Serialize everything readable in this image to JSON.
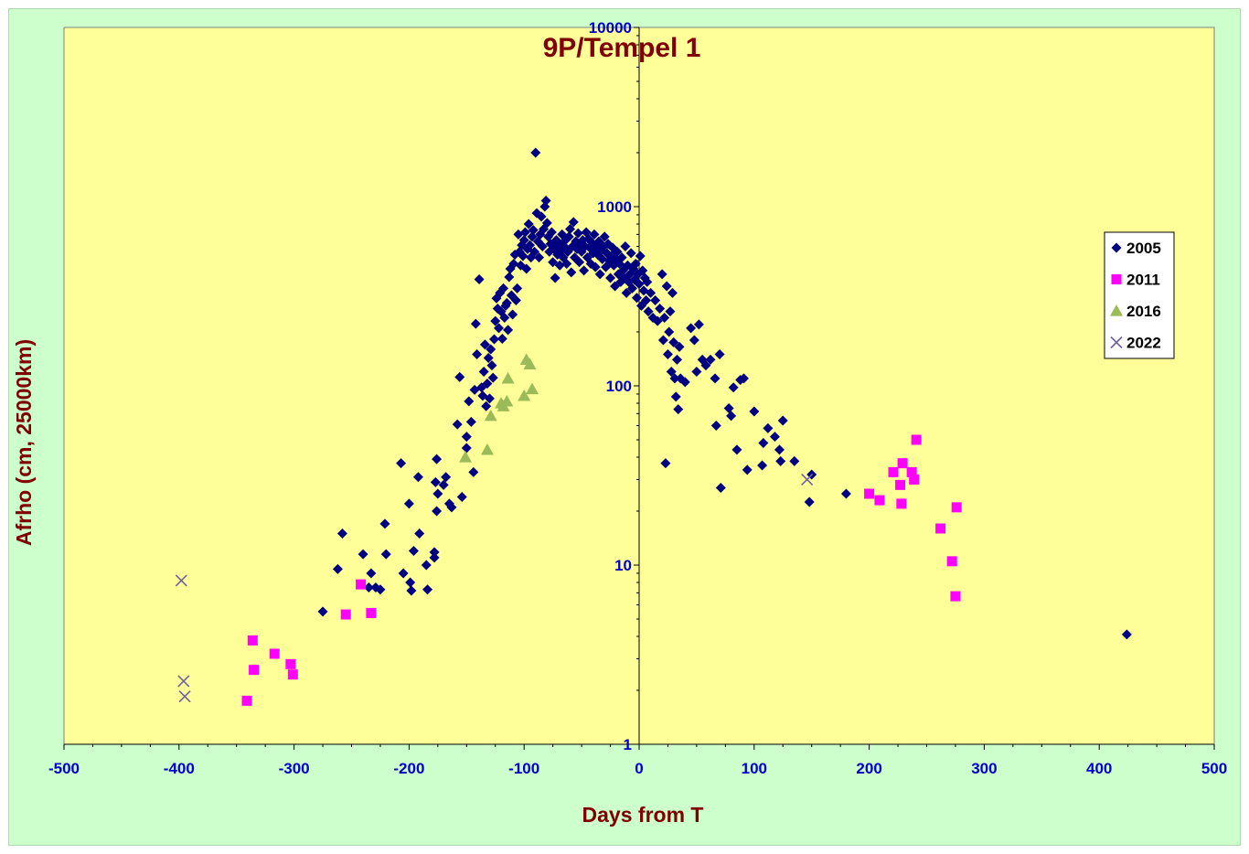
{
  "chart_data": {
    "type": "scatter",
    "title": "9P/Tempel 1",
    "xlabel": "Days from T",
    "ylabel": "Afrho (cm, 25000km)",
    "xlim": [
      -500,
      500
    ],
    "ylim": [
      1,
      10000
    ],
    "yscale": "log",
    "x_ticks": [
      "-500",
      "-400",
      "-300",
      "-200",
      "-100",
      "0",
      "100",
      "200",
      "300",
      "400",
      "500"
    ],
    "y_ticks": [
      "1",
      "10",
      "100",
      "1000",
      "10000"
    ],
    "legend_position": "right",
    "colors": {
      "plot_background": "#ffff99",
      "chart_background": "#ccffcc",
      "title": "#800000",
      "tick_labels": "#0000cc"
    },
    "series": [
      {
        "name": "2005",
        "marker": "diamond",
        "color": "#000080",
        "points": [
          [
            -275,
            5.5
          ],
          [
            -262,
            9.5
          ],
          [
            -258,
            15
          ],
          [
            -240,
            11.5
          ],
          [
            -235,
            7.5
          ],
          [
            -233,
            9
          ],
          [
            -229,
            7.5
          ],
          [
            -225,
            7.3
          ],
          [
            -221,
            17
          ],
          [
            -220,
            11.5
          ],
          [
            -207,
            37
          ],
          [
            -205,
            9
          ],
          [
            -200,
            22
          ],
          [
            -199,
            8
          ],
          [
            -198,
            7.2
          ],
          [
            -196,
            12
          ],
          [
            -192,
            31
          ],
          [
            -191,
            15
          ],
          [
            -185,
            10
          ],
          [
            -184,
            7.3
          ],
          [
            -178,
            11
          ],
          [
            -178,
            11.8
          ],
          [
            -177,
            29
          ],
          [
            -176,
            39
          ],
          [
            -176,
            20
          ],
          [
            -175,
            25
          ],
          [
            -170,
            28
          ],
          [
            -168,
            31
          ],
          [
            -165,
            22
          ],
          [
            -163,
            21
          ],
          [
            -158,
            61
          ],
          [
            -156,
            112
          ],
          [
            -154,
            24
          ],
          [
            -150,
            45
          ],
          [
            -150,
            52
          ],
          [
            -148,
            82
          ],
          [
            -146,
            63
          ],
          [
            -144,
            33
          ],
          [
            -143,
            95
          ],
          [
            -142,
            222
          ],
          [
            -141,
            150
          ],
          [
            -139,
            393
          ],
          [
            -137,
            98
          ],
          [
            -136,
            88
          ],
          [
            -135,
            120
          ],
          [
            -134,
            170
          ],
          [
            -133,
            77
          ],
          [
            -132,
            103
          ],
          [
            -131,
            143
          ],
          [
            -130,
            85
          ],
          [
            -129,
            160
          ],
          [
            -128,
            130
          ],
          [
            -127,
            111
          ],
          [
            -126,
            182
          ],
          [
            -125,
            230
          ],
          [
            -124,
            308
          ],
          [
            -123,
            270
          ],
          [
            -122,
            210
          ],
          [
            -121,
            330
          ],
          [
            -120,
            260
          ],
          [
            -119,
            183
          ],
          [
            -118,
            350
          ],
          [
            -117,
            240
          ],
          [
            -116,
            280
          ],
          [
            -115,
            290
          ],
          [
            -114,
            205
          ],
          [
            -113,
            405
          ],
          [
            -112,
            450
          ],
          [
            -111,
            320
          ],
          [
            -110,
            250
          ],
          [
            -109,
            480
          ],
          [
            -108,
            540
          ],
          [
            -107,
            300
          ],
          [
            -106,
            350
          ],
          [
            -105,
            700
          ],
          [
            -104,
            560
          ],
          [
            -103,
            470
          ],
          [
            -102,
            610
          ],
          [
            -101,
            530
          ],
          [
            -100,
            650
          ],
          [
            -99,
            720
          ],
          [
            -98,
            450
          ],
          [
            -97,
            580
          ],
          [
            -96,
            800
          ],
          [
            -95,
            610
          ],
          [
            -94,
            520
          ],
          [
            -93,
            680
          ],
          [
            -92,
            740
          ],
          [
            -91,
            560
          ],
          [
            -90,
            2000
          ],
          [
            -89,
            920
          ],
          [
            -88,
            640
          ],
          [
            -87,
            520
          ],
          [
            -86,
            700
          ],
          [
            -85,
            880
          ],
          [
            -84,
            600
          ],
          [
            -83,
            750
          ],
          [
            -82,
            1000
          ],
          [
            -81,
            1080
          ],
          [
            -80,
            810
          ],
          [
            -79,
            680
          ],
          [
            -78,
            560
          ],
          [
            -77,
            620
          ],
          [
            -76,
            720
          ],
          [
            -75,
            490
          ],
          [
            -74,
            580
          ],
          [
            -73,
            400
          ],
          [
            -72,
            650
          ],
          [
            -71,
            540
          ],
          [
            -70,
            610
          ],
          [
            -69,
            470
          ],
          [
            -68,
            570
          ],
          [
            -67,
            700
          ],
          [
            -66,
            520
          ],
          [
            -65,
            640
          ],
          [
            -64,
            590
          ],
          [
            -63,
            480
          ],
          [
            -62,
            560
          ],
          [
            -61,
            680
          ],
          [
            -60,
            750
          ],
          [
            -59,
            430
          ],
          [
            -58,
            600
          ],
          [
            -57,
            820
          ],
          [
            -56,
            520
          ],
          [
            -55,
            640
          ],
          [
            -54,
            580
          ],
          [
            -53,
            710
          ],
          [
            -52,
            490
          ],
          [
            -51,
            610
          ],
          [
            -50,
            560
          ],
          [
            -49,
            650
          ],
          [
            -48,
            440
          ],
          [
            -47,
            600
          ],
          [
            -46,
            720
          ],
          [
            -45,
            520
          ],
          [
            -44,
            660
          ],
          [
            -43,
            590
          ],
          [
            -42,
            480
          ],
          [
            -41,
            630
          ],
          [
            -40,
            550
          ],
          [
            -39,
            700
          ],
          [
            -38,
            460
          ],
          [
            -37,
            590
          ],
          [
            -36,
            540
          ],
          [
            -35,
            640
          ],
          [
            -34,
            420
          ],
          [
            -33,
            570
          ],
          [
            -32,
            510
          ],
          [
            -31,
            600
          ],
          [
            -30,
            680
          ],
          [
            -29,
            460
          ],
          [
            -28,
            550
          ],
          [
            -27,
            620
          ],
          [
            -26,
            500
          ],
          [
            -25,
            400
          ],
          [
            -24,
            530
          ],
          [
            -23,
            590
          ],
          [
            -22,
            470
          ],
          [
            -21,
            360
          ],
          [
            -20,
            510
          ],
          [
            -19,
            560
          ],
          [
            -18,
            420
          ],
          [
            -17,
            480
          ],
          [
            -16,
            380
          ],
          [
            -15,
            520
          ],
          [
            -14,
            440
          ],
          [
            -13,
            400
          ],
          [
            -12,
            600
          ],
          [
            -11,
            330
          ],
          [
            -10,
            470
          ],
          [
            -9,
            380
          ],
          [
            -8,
            420
          ],
          [
            -7,
            550
          ],
          [
            -6,
            350
          ],
          [
            -5,
            450
          ],
          [
            -4,
            390
          ],
          [
            -3,
            480
          ],
          [
            -2,
            310
          ],
          [
            -1,
            420
          ],
          [
            0,
            370
          ],
          [
            1,
            530
          ],
          [
            2,
            280
          ],
          [
            3,
            440
          ],
          [
            4,
            340
          ],
          [
            5,
            400
          ],
          [
            6,
            300
          ],
          [
            7,
            380
          ],
          [
            8,
            260
          ],
          [
            10,
            330
          ],
          [
            12,
            240
          ],
          [
            14,
            300
          ],
          [
            16,
            230
          ],
          [
            18,
            270
          ],
          [
            20,
            420
          ],
          [
            21,
            180
          ],
          [
            22,
            240
          ],
          [
            23,
            37
          ],
          [
            24,
            360
          ],
          [
            25,
            150
          ],
          [
            26,
            200
          ],
          [
            27,
            260
          ],
          [
            28,
            120
          ],
          [
            29,
            330
          ],
          [
            30,
            175
          ],
          [
            31,
            110
          ],
          [
            32,
            87
          ],
          [
            33,
            140
          ],
          [
            34,
            74
          ],
          [
            35,
            165
          ],
          [
            36,
            110
          ],
          [
            40,
            105
          ],
          [
            45,
            210
          ],
          [
            48,
            180
          ],
          [
            50,
            120
          ],
          [
            52,
            220
          ],
          [
            55,
            140
          ],
          [
            58,
            130
          ],
          [
            62,
            140
          ],
          [
            66,
            110
          ],
          [
            67,
            60
          ],
          [
            70,
            150
          ],
          [
            71,
            27
          ],
          [
            78,
            75
          ],
          [
            80,
            68
          ],
          [
            82,
            98
          ],
          [
            85,
            44
          ],
          [
            88,
            108
          ],
          [
            91,
            110
          ],
          [
            94,
            34
          ],
          [
            100,
            72
          ],
          [
            107,
            36
          ],
          [
            108,
            48
          ],
          [
            112,
            58
          ],
          [
            118,
            52
          ],
          [
            122,
            44
          ],
          [
            123,
            38
          ],
          [
            125,
            64
          ],
          [
            135,
            38
          ],
          [
            148,
            22.5
          ],
          [
            150,
            32
          ],
          [
            180,
            25
          ],
          [
            424,
            4.1
          ]
        ]
      },
      {
        "name": "2011",
        "marker": "square",
        "color": "#ff00ff",
        "points": [
          [
            -341,
            1.75
          ],
          [
            -336,
            3.8
          ],
          [
            -335,
            2.6
          ],
          [
            -317,
            3.2
          ],
          [
            -303,
            2.8
          ],
          [
            -301,
            2.45
          ],
          [
            -255,
            5.3
          ],
          [
            -242,
            7.8
          ],
          [
            -233,
            5.4
          ],
          [
            200,
            25
          ],
          [
            209,
            23
          ],
          [
            221,
            33
          ],
          [
            227,
            28
          ],
          [
            228,
            22
          ],
          [
            229,
            37
          ],
          [
            237,
            33
          ],
          [
            239,
            30
          ],
          [
            241,
            50
          ],
          [
            262,
            16
          ],
          [
            272,
            10.5
          ],
          [
            275,
            6.7
          ],
          [
            276,
            21
          ]
        ]
      },
      {
        "name": "2016",
        "marker": "triangle",
        "color": "#9bbb59",
        "points": [
          [
            -151,
            40
          ],
          [
            -132,
            44
          ],
          [
            -129,
            68
          ],
          [
            -120,
            80
          ],
          [
            -118,
            77
          ],
          [
            -115,
            82
          ],
          [
            -114,
            110
          ],
          [
            -100,
            88
          ],
          [
            -98,
            140
          ],
          [
            -95,
            132
          ],
          [
            -93,
            96
          ]
        ]
      },
      {
        "name": "2022",
        "marker": "x",
        "color": "#7060a0",
        "points": [
          [
            -398,
            8.2
          ],
          [
            -396,
            2.25
          ],
          [
            -395,
            1.85
          ],
          [
            146,
            30
          ]
        ]
      }
    ]
  }
}
